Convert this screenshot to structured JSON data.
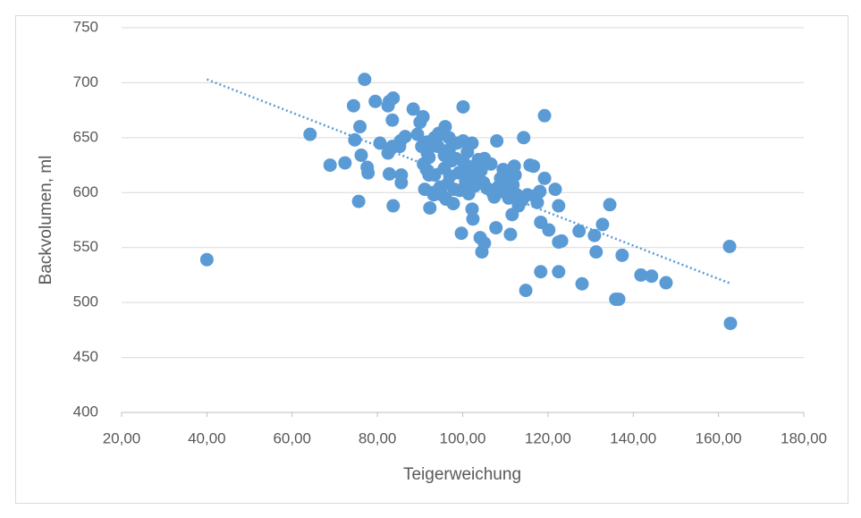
{
  "chart_data": {
    "type": "scatter",
    "x_label": "Teigerweichung",
    "y_label": "Backvolumen, ml",
    "color": "#5b9bd5",
    "grid": true,
    "xlim": [
      20,
      180
    ],
    "xticks": [
      {
        "value": 20,
        "label": "20,00"
      },
      {
        "value": 40,
        "label": "40,00"
      },
      {
        "value": 60,
        "label": "60,00"
      },
      {
        "value": 80,
        "label": "80,00"
      },
      {
        "value": 100,
        "label": "100,00"
      },
      {
        "value": 120,
        "label": "120,00"
      },
      {
        "value": 140,
        "label": "140,00"
      },
      {
        "value": 160,
        "label": "160,00"
      },
      {
        "value": 180,
        "label": "180,00"
      }
    ],
    "ylim": [
      400,
      750
    ],
    "yticks": [
      400,
      450,
      500,
      550,
      600,
      650,
      700,
      750
    ],
    "x": [
      40.0,
      64.2,
      68.9,
      72.4,
      75.6,
      74.4,
      74.7,
      75.9,
      76.2,
      77.0,
      77.6,
      77.8,
      79.5,
      80.6,
      82.5,
      82.8,
      83.7,
      83.5,
      82.5,
      82.8,
      83.5,
      85.2,
      85.4,
      83.7,
      85.6,
      85.6,
      86.5,
      88.4,
      89.4,
      90.0,
      90.7,
      90.4,
      90.8,
      91.1,
      91.5,
      91.7,
      91.7,
      92.1,
      92.1,
      93.0,
      92.3,
      93.2,
      93.4,
      93.4,
      94.2,
      94.4,
      94.7,
      95.1,
      94.9,
      95.7,
      95.7,
      95.9,
      96.1,
      96.5,
      96.8,
      96.8,
      97.0,
      97.4,
      97.8,
      98.0,
      98.4,
      98.6,
      99.1,
      99.3,
      99.7,
      100.1,
      100.1,
      100.3,
      100.7,
      101.1,
      101.4,
      101.8,
      102.2,
      102.2,
      102.4,
      102.8,
      103.0,
      103.4,
      103.7,
      104.1,
      104.3,
      104.5,
      104.9,
      105.1,
      105.1,
      105.7,
      106.6,
      107.0,
      107.4,
      107.8,
      108.0,
      108.3,
      108.9,
      109.3,
      109.5,
      109.9,
      110.4,
      110.8,
      111.2,
      111.6,
      111.8,
      112.1,
      112.3,
      112.7,
      113.1,
      113.9,
      114.3,
      114.8,
      115.2,
      115.8,
      116.6,
      116.9,
      117.5,
      118.1,
      118.3,
      118.3,
      119.2,
      119.2,
      120.2,
      121.7,
      122.5,
      122.5,
      122.5,
      123.2,
      127.3,
      128.0,
      130.9,
      131.3,
      132.8,
      134.5,
      135.9,
      136.6,
      137.4,
      141.8,
      144.3,
      147.7,
      162.6,
      162.8
    ],
    "values": [
      539,
      653,
      625,
      627,
      592,
      679,
      648,
      660,
      634,
      703,
      623,
      618,
      683,
      645,
      679,
      683,
      686,
      666,
      636,
      617,
      642,
      642,
      647,
      588,
      616,
      609,
      651,
      676,
      653,
      664,
      669,
      642,
      626,
      603,
      621,
      646,
      636,
      632,
      616,
      600,
      586,
      598,
      616,
      650,
      642,
      654,
      605,
      598,
      653,
      634,
      622,
      660,
      594,
      608,
      650,
      639,
      615,
      629,
      590,
      603,
      631,
      645,
      618,
      602,
      563,
      678,
      647,
      627,
      610,
      637,
      599,
      618,
      585,
      645,
      576,
      606,
      625,
      612,
      630,
      559,
      620,
      546,
      609,
      554,
      631,
      604,
      626,
      600,
      596,
      568,
      647,
      605,
      613,
      601,
      621,
      612,
      599,
      595,
      562,
      580,
      607,
      624,
      616,
      598,
      588,
      593,
      650,
      511,
      598,
      625,
      624,
      597,
      591,
      601,
      573,
      528,
      670,
      613,
      566,
      603,
      588,
      555,
      528,
      556,
      565,
      517,
      561,
      546,
      571,
      589,
      503,
      503,
      543,
      525,
      524,
      518,
      551,
      481
    ],
    "trendline": {
      "x": [
        40,
        163
      ],
      "y": [
        703,
        517
      ]
    }
  }
}
